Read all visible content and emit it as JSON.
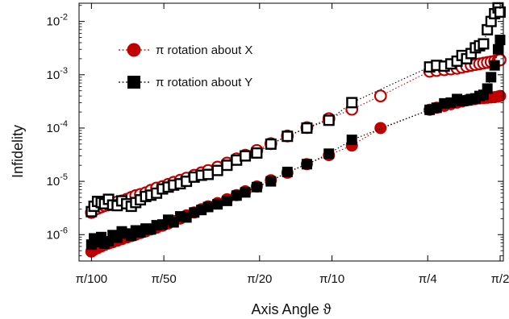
{
  "chart_data": {
    "type": "scatter",
    "xlabel": "Axis Angle ϑ",
    "ylabel": "Infidelity",
    "x_scale": "log",
    "y_scale": "log",
    "xlim": [
      0.0279,
      1.62
    ],
    "ylim": [
      3.2e-07,
      0.022
    ],
    "x_ticks": [
      {
        "value": 0.031416,
        "label": "π/100"
      },
      {
        "value": 0.062832,
        "label": "π/50"
      },
      {
        "value": 0.15708,
        "label": "π/20"
      },
      {
        "value": 0.31416,
        "label": "π/10"
      },
      {
        "value": 0.7854,
        "label": "π/4"
      },
      {
        "value": 1.5708,
        "label": "π/2"
      }
    ],
    "y_ticks": [
      {
        "value": 1e-06,
        "base": "10",
        "exp": "-6"
      },
      {
        "value": 1e-05,
        "base": "10",
        "exp": "-5"
      },
      {
        "value": 0.0001,
        "base": "10",
        "exp": "-4"
      },
      {
        "value": 0.001,
        "base": "10",
        "exp": "-3"
      },
      {
        "value": 0.01,
        "base": "10",
        "exp": "-2"
      }
    ],
    "legend": {
      "placement": "top-left",
      "entries": [
        {
          "label": "π rotation about X",
          "marker": "circle",
          "color": "#c00000"
        },
        {
          "label": "π rotation about Y",
          "marker": "square",
          "color": "#000000"
        }
      ]
    },
    "series": [
      {
        "key": "x_open",
        "marker": "circle",
        "filled": false,
        "color": "#c00000",
        "line": "dotted",
        "x": [
          0.0314,
          0.0322,
          0.0333,
          0.0345,
          0.0356,
          0.037,
          0.0385,
          0.0402,
          0.042,
          0.044,
          0.046,
          0.048,
          0.0502,
          0.0528,
          0.0555,
          0.0586,
          0.062,
          0.0655,
          0.069,
          0.0735,
          0.078,
          0.084,
          0.09,
          0.096,
          0.105,
          0.115,
          0.126,
          0.137,
          0.153,
          0.175,
          0.205,
          0.247,
          0.305,
          0.38,
          0.5,
          0.8,
          0.855,
          0.92,
          0.98,
          1.04,
          1.09,
          1.14,
          1.19,
          1.24,
          1.29,
          1.34,
          1.39,
          1.44,
          1.49,
          1.54,
          1.57
        ],
        "y": [
          2.6e-06,
          2.9e-06,
          3.1e-06,
          3.3e-06,
          3.5e-06,
          3.6e-06,
          3.8e-06,
          4.1e-06,
          4.3e-06,
          4.6e-06,
          5e-06,
          5.4e-06,
          5.7e-06,
          6.1e-06,
          6.8e-06,
          7.5e-06,
          8e-06,
          8.8e-06,
          9.6e-06,
          1.05e-05,
          1.15e-05,
          1.3e-05,
          1.45e-05,
          1.6e-05,
          1.85e-05,
          2.2e-05,
          2.65e-05,
          3.1e-05,
          3.8e-05,
          5.1e-05,
          7.1e-05,
          0.000102,
          0.00015,
          0.000225,
          0.0004,
          0.00116,
          0.0012,
          0.00124,
          0.00128,
          0.00132,
          0.00138,
          0.00144,
          0.0015,
          0.00155,
          0.0016,
          0.00165,
          0.0017,
          0.00175,
          0.0018,
          0.00185,
          0.0019
        ]
      },
      {
        "key": "x_filled",
        "marker": "circle",
        "filled": true,
        "color": "#c00000",
        "line": "dotted",
        "x": [
          0.0314,
          0.0322,
          0.0333,
          0.0345,
          0.0356,
          0.037,
          0.0385,
          0.0402,
          0.042,
          0.044,
          0.046,
          0.048,
          0.0502,
          0.0528,
          0.0555,
          0.0586,
          0.062,
          0.0655,
          0.069,
          0.0735,
          0.078,
          0.084,
          0.09,
          0.096,
          0.105,
          0.115,
          0.126,
          0.137,
          0.153,
          0.175,
          0.205,
          0.247,
          0.305,
          0.38,
          0.5,
          0.8,
          0.855,
          0.92,
          0.98,
          1.04,
          1.09,
          1.14,
          1.19,
          1.24,
          1.29,
          1.34,
          1.39,
          1.44,
          1.49,
          1.54,
          1.57
        ],
        "y": [
          4.8e-07,
          5.2e-07,
          5.6e-07,
          6e-07,
          6.4e-07,
          6.8e-07,
          7.2e-07,
          7.7e-07,
          8.2e-07,
          8.8e-07,
          9.4e-07,
          1e-06,
          1.07e-06,
          1.15e-06,
          1.25e-06,
          1.35e-06,
          1.47e-06,
          1.62e-06,
          1.8e-06,
          2e-06,
          2.3e-06,
          2.6e-06,
          3e-06,
          3.4e-06,
          3.9e-06,
          4.6e-06,
          5.5e-06,
          6.5e-06,
          8e-06,
          1.05e-05,
          1.45e-05,
          2.1e-05,
          3.1e-05,
          4.7e-05,
          0.0001,
          0.00022,
          0.00024,
          0.00026,
          0.00028,
          0.0003,
          0.000315,
          0.00033,
          0.00034,
          0.00035,
          0.00036,
          0.000365,
          0.00037,
          0.000375,
          0.00038,
          0.00039,
          0.0004
        ]
      },
      {
        "key": "y_open",
        "marker": "square",
        "filled": false,
        "color": "#000000",
        "line": "dotted",
        "x": [
          0.0314,
          0.0322,
          0.0333,
          0.0345,
          0.0356,
          0.037,
          0.0385,
          0.0402,
          0.042,
          0.044,
          0.046,
          0.048,
          0.0502,
          0.0528,
          0.0555,
          0.0586,
          0.062,
          0.0655,
          0.069,
          0.0735,
          0.078,
          0.084,
          0.09,
          0.096,
          0.105,
          0.115,
          0.126,
          0.137,
          0.153,
          0.175,
          0.205,
          0.247,
          0.305,
          0.38,
          0.8,
          0.855,
          0.92,
          0.98,
          1.04,
          1.09,
          1.14,
          1.19,
          1.24,
          1.29,
          1.34,
          1.39,
          1.44,
          1.49,
          1.54,
          1.57
        ],
        "y": [
          2.7e-06,
          3.4e-06,
          4.2e-06,
          4e-06,
          3.8e-06,
          4.6e-06,
          3.6e-06,
          3.5e-06,
          4.3e-06,
          3.8e-06,
          3.4e-06,
          4e-06,
          4.5e-06,
          5.2e-06,
          5.5e-06,
          6e-06,
          7.2e-06,
          7.8e-06,
          8.5e-06,
          9e-06,
          1e-05,
          1.2e-05,
          1.3e-05,
          1.35e-05,
          1.6e-05,
          2e-05,
          2.5e-05,
          3e-05,
          3.4e-05,
          5e-05,
          7e-05,
          0.0001,
          0.00014,
          0.0003,
          0.0014,
          0.0015,
          0.00145,
          0.0016,
          0.0018,
          0.0023,
          0.002,
          0.0025,
          0.0032,
          0.0035,
          0.0038,
          0.007,
          0.01,
          0.014,
          0.018,
          0.015
        ]
      },
      {
        "key": "y_filled",
        "marker": "square",
        "filled": true,
        "color": "#000000",
        "line": "dotted",
        "x": [
          0.0314,
          0.0322,
          0.0333,
          0.0345,
          0.0356,
          0.037,
          0.0385,
          0.0402,
          0.042,
          0.044,
          0.046,
          0.048,
          0.0502,
          0.0528,
          0.0555,
          0.0586,
          0.062,
          0.0655,
          0.069,
          0.0735,
          0.078,
          0.084,
          0.09,
          0.096,
          0.105,
          0.115,
          0.126,
          0.137,
          0.153,
          0.175,
          0.205,
          0.247,
          0.305,
          0.38,
          0.8,
          0.855,
          0.92,
          0.98,
          1.04,
          1.09,
          1.14,
          1.19,
          1.24,
          1.29,
          1.34,
          1.39,
          1.44,
          1.49,
          1.54,
          1.57
        ],
        "y": [
          6.5e-07,
          8.5e-07,
          7.2e-07,
          9e-07,
          6.8e-07,
          7.5e-07,
          9.8e-07,
          8.8e-07,
          1.15e-06,
          1.05e-06,
          9.5e-07,
          1.2e-06,
          1.1e-06,
          1.3e-06,
          1.25e-06,
          1.5e-06,
          1.55e-06,
          1.9e-06,
          1.7e-06,
          2.2e-06,
          2.1e-06,
          2.6e-06,
          2.9e-06,
          3.3e-06,
          3.7e-06,
          4.3e-06,
          5.4e-06,
          6.2e-06,
          7.8e-06,
          1e-05,
          1.5e-05,
          2.1e-05,
          3.3e-05,
          6e-05,
          0.00022,
          0.00024,
          0.00029,
          0.0003,
          0.00035,
          0.00032,
          0.00033,
          0.00035,
          0.00036,
          0.0004,
          0.00042,
          0.00055,
          0.0009,
          0.0015,
          0.003,
          0.0045
        ]
      }
    ]
  }
}
